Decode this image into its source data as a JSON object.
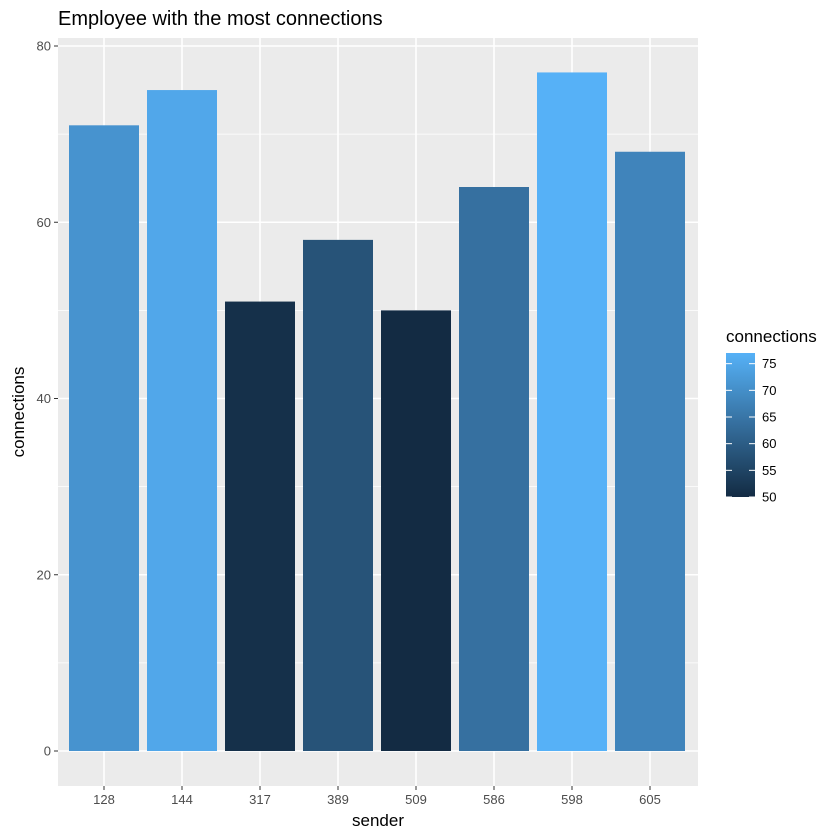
{
  "chart_data": {
    "type": "bar",
    "title": "Employee with the most connections",
    "xlabel": "sender",
    "ylabel": "connections",
    "categories": [
      "128",
      "144",
      "317",
      "389",
      "509",
      "586",
      "598",
      "605"
    ],
    "values": [
      71,
      75,
      51,
      58,
      50,
      64,
      77,
      68
    ],
    "ylim": [
      0,
      80
    ],
    "yticks": [
      0,
      20,
      40,
      60,
      80
    ],
    "grid": true,
    "legend": {
      "title": "connections",
      "placement": "right",
      "breaks": [
        75,
        70,
        65,
        60,
        55,
        50
      ],
      "low_color": "#132B43",
      "high_color": "#56B1F7",
      "min": 50,
      "max": 77
    },
    "panel_background": "#ebebeb",
    "grid_color": "#ffffff"
  }
}
